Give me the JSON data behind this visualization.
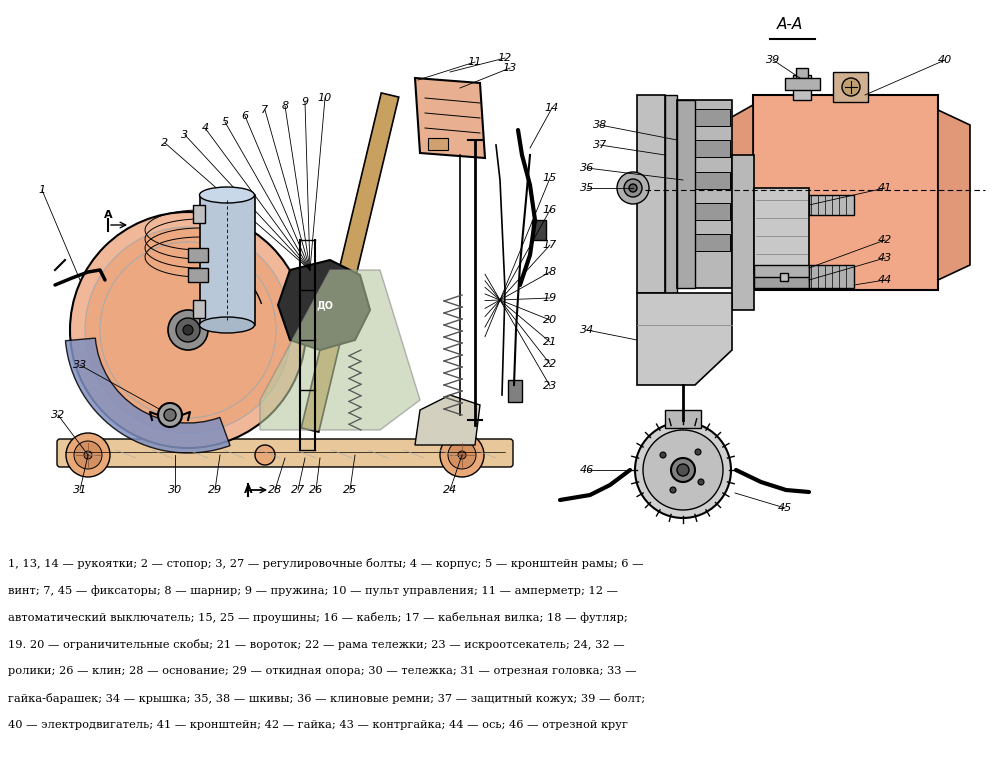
{
  "bg_color": "#FFFFFF",
  "fig_width": 10.02,
  "fig_height": 7.67,
  "legend_text_lines": [
    "1, 13, 14 — рукоятки; 2 — стопор; 3, 27 — регулировочные болты; 4 — корпус; 5 — кронштейн рамы; 6 —",
    "винт; 7, 45 — фиксаторы; 8 — шарнир; 9 — пружина; 10 — пульт управления; 11 — амперметр; 12 —",
    "автоматический выключатель; 15, 25 — проушины; 16 — кабель; 17 — кабельная вилка; 18 — футляр;",
    "19. 20 — ограничительные скобы; 21 — вороток; 22 — рама тележки; 23 — искроотсекатель; 24, 32 —",
    "ролики; 26 — клин; 28 — основание; 29 — откидная опора; 30 — тележка; 31 — отрезная головка; 33 —",
    "гайка-барашек; 34 — крышка; 35, 38 — шкивы; 36 — клиновые ремни; 37 — защитный кожух; 39 — болт;",
    "40 — электродвигатель; 41 — кронштейн; 42 — гайка; 43 — контргайка; 44 — ось; 46 — отрезной круг"
  ]
}
